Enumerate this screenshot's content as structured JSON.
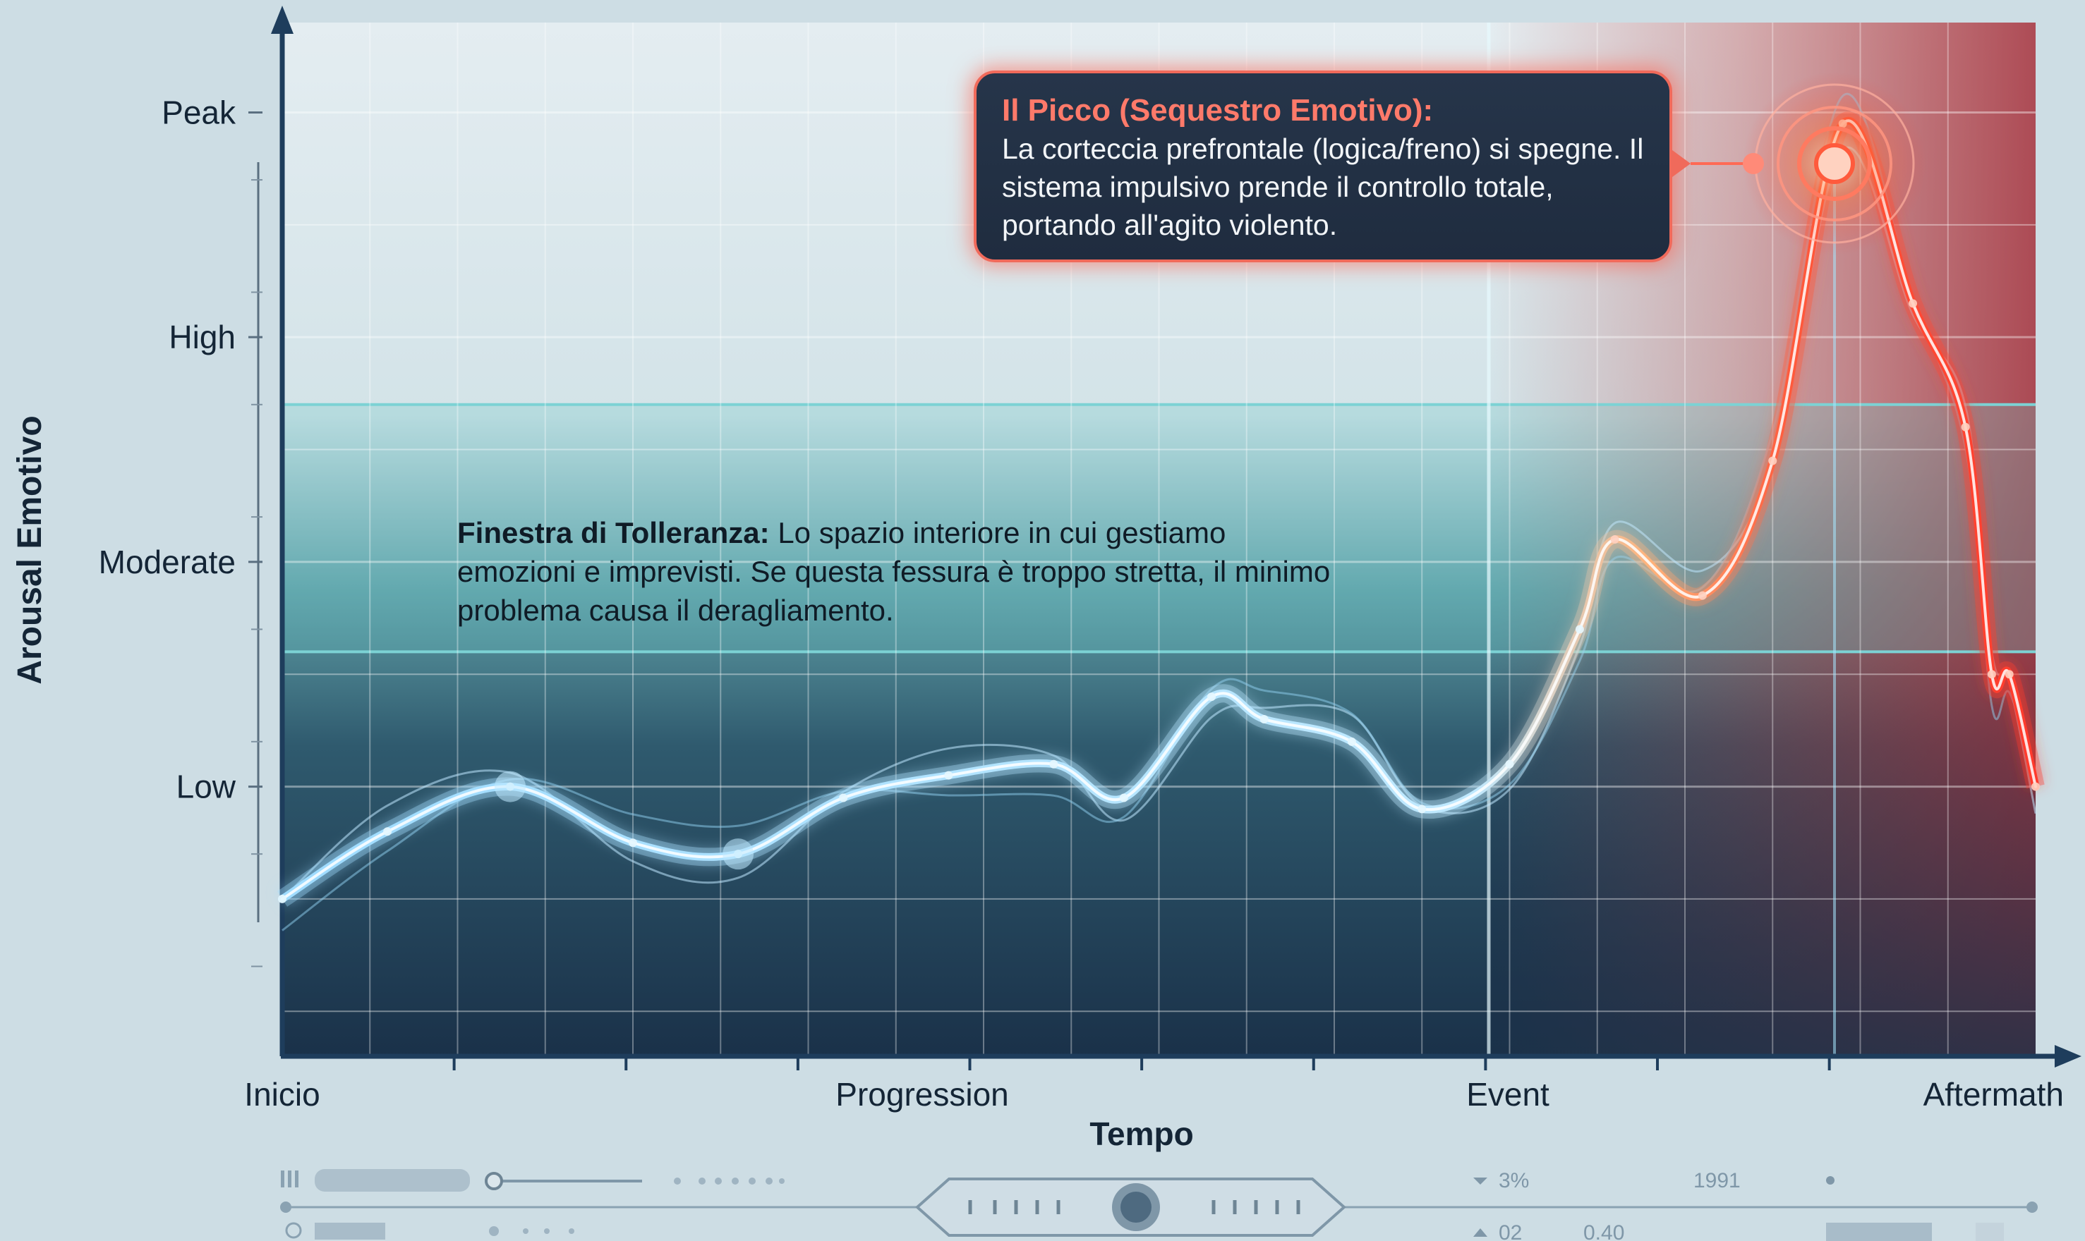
{
  "chart_data": {
    "type": "line",
    "title": "",
    "xlabel": "Tempo",
    "ylabel": "Arousal Emotivo",
    "x_ticks": [
      "Inicio",
      "Progression",
      "Event",
      "Aftermath"
    ],
    "y_ticks": [
      "Low",
      "Moderate",
      "High",
      "Peak"
    ],
    "xlim": [
      0,
      10
    ],
    "ylim": [
      -1.2,
      3.4
    ],
    "grid": true,
    "tolerance_window": {
      "y_low": 0.6,
      "y_high": 1.7
    },
    "series": [
      {
        "x": [
          0,
          0.6,
          1.3,
          2.0,
          2.6,
          3.2,
          3.8,
          4.4,
          4.8,
          5.3,
          5.6,
          6.1,
          6.5,
          7.0,
          7.4,
          7.6,
          8.1,
          8.5,
          8.9,
          9.3,
          9.6,
          9.75,
          9.85,
          10.0
        ],
        "values": [
          -0.5,
          -0.2,
          0.0,
          -0.25,
          -0.3,
          -0.05,
          0.05,
          0.1,
          -0.05,
          0.4,
          0.3,
          0.2,
          -0.1,
          0.1,
          0.7,
          1.1,
          0.85,
          1.45,
          2.95,
          2.15,
          1.6,
          0.5,
          0.5,
          0.0
        ]
      }
    ],
    "annotations": [
      {
        "target": "peak",
        "title": "Il Picco (Sequestro Emotivo):",
        "text": "La corteccia prefrontale (logica/freno) si spegne. Il sistema impulsivo prende il controllo totale, portando all'agito violento."
      }
    ],
    "tolerance_label": "Finestra di Tolleranza:",
    "tolerance_text": "Lo spazio interiore in cui gestiamo emozioni e imprevisti. Se questa fessura è troppo stretta, il minimo problema causa il deragliamento.",
    "colors": {
      "calm_line": "#8fd6ff",
      "hot_line": "#ff5a3c",
      "peak_zone": "#c93a3a",
      "tolerance_band": "#5fb6b8",
      "lower_zone": "#1f3a55"
    }
  },
  "footer": {
    "readout_1": "3%",
    "readout_2": "02",
    "readout_3": "0.40",
    "readout_4": "1991"
  }
}
